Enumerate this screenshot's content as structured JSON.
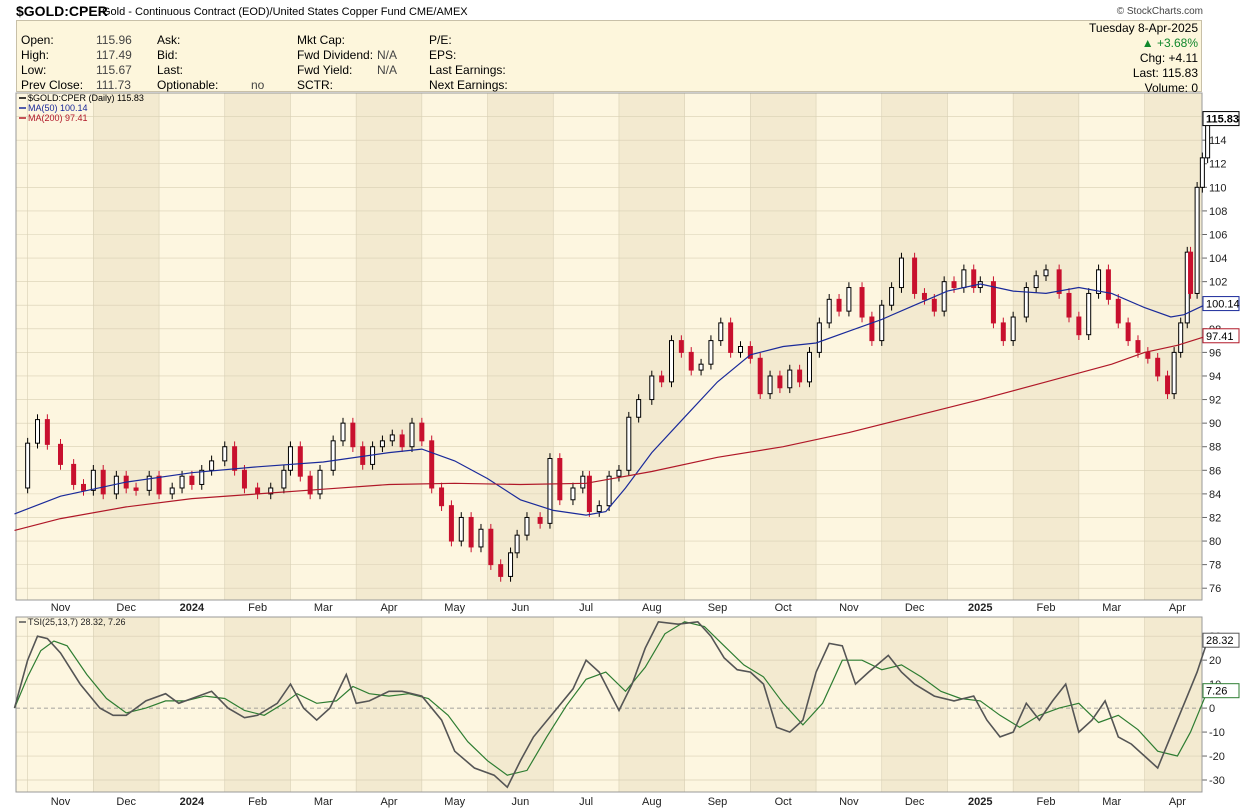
{
  "header": {
    "symbol": "$GOLD:CPER",
    "description": "Gold - Continuous Contract (EOD)/United States Copper Fund",
    "exchange": "CME/AMEX",
    "copyright": "© StockCharts.com"
  },
  "quote": {
    "col1": [
      {
        "label": "Open:",
        "value": "115.96"
      },
      {
        "label": "High:",
        "value": "117.49"
      },
      {
        "label": "Low:",
        "value": "115.67"
      },
      {
        "label": "Prev Close:",
        "value": "111.73"
      }
    ],
    "col2": [
      {
        "label": "Ask:",
        "value": ""
      },
      {
        "label": "Bid:",
        "value": ""
      },
      {
        "label": "Last:",
        "value": ""
      },
      {
        "label": "Optionable:",
        "value": "no"
      }
    ],
    "col3": [
      {
        "label": "Mkt Cap:",
        "value": ""
      },
      {
        "label": "Fwd Dividend:",
        "value": "N/A"
      },
      {
        "label": "Fwd Yield:",
        "value": "N/A"
      },
      {
        "label": "SCTR:",
        "value": ""
      }
    ],
    "col4": [
      {
        "label": "P/E:",
        "value": ""
      },
      {
        "label": "EPS:",
        "value": ""
      },
      {
        "label": "Last Earnings:",
        "value": ""
      },
      {
        "label": "Next Earnings:",
        "value": ""
      }
    ],
    "date": "Tuesday 8-Apr-2025",
    "change_pct": "+3.68%",
    "chg": "Chg: +4.11",
    "last": "Last: 115.83",
    "volume": "Volume:  0",
    "up_color": "#11882c"
  },
  "chart_data": [
    {
      "type": "candlestick",
      "legend": [
        {
          "label": "$GOLD:CPER (Daily) 115.83",
          "color": "#000000"
        },
        {
          "label": "MA(50) 100.14",
          "color": "#1a2a9a"
        },
        {
          "label": "MA(200) 97.41",
          "color": "#b01828"
        }
      ],
      "ylim": [
        75,
        118
      ],
      "y_ticks": [
        76,
        78,
        80,
        82,
        84,
        86,
        88,
        90,
        92,
        94,
        96,
        98,
        100,
        102,
        104,
        106,
        108,
        110,
        112,
        114,
        116
      ],
      "last_value_label": "115.83",
      "last_value": 115.83,
      "ma50_label": "100.14",
      "ma50_value": 100.14,
      "ma200_label": "97.41",
      "ma200_value": 97.41,
      "x_axis_labels": [
        "Nov",
        "Dec",
        "2024",
        "Feb",
        "Mar",
        "Apr",
        "May",
        "Jun",
        "Jul",
        "Aug",
        "Sep",
        "Oct",
        "Nov",
        "Dec",
        "2025",
        "Feb",
        "Mar",
        "Apr"
      ],
      "bold_labels": [
        "2024",
        "2025"
      ],
      "month_index": [
        0,
        1,
        2,
        3,
        4,
        5,
        6,
        7,
        8,
        9,
        10,
        11,
        12,
        13,
        14,
        15,
        16,
        17
      ],
      "close_path": [
        [
          -0.7,
          84.5
        ],
        [
          -0.5,
          88.3
        ],
        [
          -0.35,
          90.3
        ],
        [
          -0.2,
          88.2
        ],
        [
          0,
          86.5
        ],
        [
          0.2,
          84.8
        ],
        [
          0.35,
          84.3
        ],
        [
          0.5,
          86.0
        ],
        [
          0.65,
          84.0
        ],
        [
          0.85,
          85.5
        ],
        [
          1.0,
          84.5
        ],
        [
          1.15,
          84.3
        ],
        [
          1.35,
          85.5
        ],
        [
          1.5,
          84.0
        ],
        [
          1.7,
          84.5
        ],
        [
          1.85,
          85.5
        ],
        [
          2.0,
          84.8
        ],
        [
          2.15,
          86.0
        ],
        [
          2.3,
          86.8
        ],
        [
          2.5,
          88.0
        ],
        [
          2.65,
          86.0
        ],
        [
          2.8,
          84.5
        ],
        [
          3.0,
          84.0
        ],
        [
          3.2,
          84.5
        ],
        [
          3.4,
          86.0
        ],
        [
          3.5,
          88.0
        ],
        [
          3.65,
          85.5
        ],
        [
          3.8,
          84.0
        ],
        [
          3.95,
          86.0
        ],
        [
          4.15,
          88.5
        ],
        [
          4.3,
          90.0
        ],
        [
          4.45,
          88.0
        ],
        [
          4.6,
          86.5
        ],
        [
          4.75,
          88.0
        ],
        [
          4.9,
          88.5
        ],
        [
          5.05,
          89.0
        ],
        [
          5.2,
          88.0
        ],
        [
          5.35,
          90.0
        ],
        [
          5.5,
          88.5
        ],
        [
          5.65,
          84.5
        ],
        [
          5.8,
          83.0
        ],
        [
          5.95,
          80.0
        ],
        [
          6.1,
          82.0
        ],
        [
          6.25,
          79.5
        ],
        [
          6.4,
          81.0
        ],
        [
          6.55,
          78.0
        ],
        [
          6.7,
          77.0
        ],
        [
          6.85,
          79.0
        ],
        [
          6.95,
          80.5
        ],
        [
          7.1,
          82.0
        ],
        [
          7.3,
          81.5
        ],
        [
          7.45,
          87.0
        ],
        [
          7.6,
          83.5
        ],
        [
          7.8,
          84.5
        ],
        [
          7.95,
          85.5
        ],
        [
          8.05,
          82.5
        ],
        [
          8.2,
          83.0
        ],
        [
          8.35,
          85.5
        ],
        [
          8.5,
          86.0
        ],
        [
          8.65,
          90.5
        ],
        [
          8.8,
          92.0
        ],
        [
          9.0,
          94.0
        ],
        [
          9.15,
          93.5
        ],
        [
          9.3,
          97.0
        ],
        [
          9.45,
          96.0
        ],
        [
          9.6,
          94.5
        ],
        [
          9.75,
          95.0
        ],
        [
          9.9,
          97.0
        ],
        [
          10.05,
          98.5
        ],
        [
          10.2,
          96.0
        ],
        [
          10.35,
          96.5
        ],
        [
          10.5,
          95.5
        ],
        [
          10.65,
          92.5
        ],
        [
          10.8,
          94.0
        ],
        [
          10.95,
          93.0
        ],
        [
          11.1,
          94.5
        ],
        [
          11.25,
          93.5
        ],
        [
          11.4,
          96.0
        ],
        [
          11.55,
          98.5
        ],
        [
          11.7,
          100.5
        ],
        [
          11.85,
          99.5
        ],
        [
          12.0,
          101.5
        ],
        [
          12.2,
          99.0
        ],
        [
          12.35,
          97.0
        ],
        [
          12.5,
          100.0
        ],
        [
          12.65,
          101.5
        ],
        [
          12.8,
          104.0
        ],
        [
          13.0,
          101.0
        ],
        [
          13.15,
          100.5
        ],
        [
          13.3,
          99.5
        ],
        [
          13.45,
          102.0
        ],
        [
          13.6,
          101.5
        ],
        [
          13.75,
          103.0
        ],
        [
          13.9,
          101.5
        ],
        [
          14.0,
          102.0
        ],
        [
          14.2,
          98.5
        ],
        [
          14.35,
          97.0
        ],
        [
          14.5,
          99.0
        ],
        [
          14.7,
          101.5
        ],
        [
          14.85,
          102.5
        ],
        [
          15.0,
          103.0
        ],
        [
          15.2,
          101.0
        ],
        [
          15.35,
          99.0
        ],
        [
          15.5,
          97.5
        ],
        [
          15.65,
          101.0
        ],
        [
          15.8,
          103.0
        ],
        [
          15.95,
          100.5
        ],
        [
          16.1,
          98.5
        ],
        [
          16.25,
          97.0
        ],
        [
          16.4,
          96.0
        ],
        [
          16.55,
          95.5
        ],
        [
          16.7,
          94.0
        ],
        [
          16.85,
          92.5
        ],
        [
          16.95,
          96.0
        ],
        [
          17.05,
          98.5
        ],
        [
          17.15,
          104.5
        ],
        [
          17.2,
          101.0
        ],
        [
          17.3,
          110.0
        ],
        [
          17.38,
          112.5
        ],
        [
          17.46,
          115.83
        ]
      ],
      "ma50_path": [
        [
          -0.7,
          82.3
        ],
        [
          0,
          83.8
        ],
        [
          1,
          85.0
        ],
        [
          2,
          85.8
        ],
        [
          3,
          86.3
        ],
        [
          4,
          86.7
        ],
        [
          5,
          87.5
        ],
        [
          5.5,
          87.8
        ],
        [
          6,
          86.8
        ],
        [
          6.5,
          85.3
        ],
        [
          7,
          83.5
        ],
        [
          7.5,
          82.6
        ],
        [
          8,
          82.2
        ],
        [
          8.3,
          82.5
        ],
        [
          8.6,
          84.5
        ],
        [
          9,
          87.5
        ],
        [
          9.5,
          90.5
        ],
        [
          10,
          93.5
        ],
        [
          10.5,
          95.8
        ],
        [
          11,
          96.5
        ],
        [
          11.5,
          96.8
        ],
        [
          12,
          97.8
        ],
        [
          12.5,
          98.8
        ],
        [
          13,
          100.0
        ],
        [
          13.5,
          101.2
        ],
        [
          14,
          101.8
        ],
        [
          14.5,
          101.2
        ],
        [
          15,
          101.0
        ],
        [
          15.5,
          101.5
        ],
        [
          16,
          101.0
        ],
        [
          16.5,
          99.8
        ],
        [
          16.9,
          99.0
        ],
        [
          17.1,
          99.2
        ],
        [
          17.46,
          100.14
        ]
      ],
      "ma200_path": [
        [
          -0.7,
          80.9
        ],
        [
          0,
          81.9
        ],
        [
          1,
          82.9
        ],
        [
          2,
          83.6
        ],
        [
          3,
          84.0
        ],
        [
          4,
          84.4
        ],
        [
          5,
          84.8
        ],
        [
          6,
          84.9
        ],
        [
          7,
          84.8
        ],
        [
          8,
          84.9
        ],
        [
          9,
          85.9
        ],
        [
          10,
          87.1
        ],
        [
          11,
          88.0
        ],
        [
          12,
          89.2
        ],
        [
          13,
          90.6
        ],
        [
          14,
          92.0
        ],
        [
          15,
          93.5
        ],
        [
          16,
          95.0
        ],
        [
          16.5,
          96.0
        ],
        [
          17,
          96.6
        ],
        [
          17.46,
          97.41
        ]
      ]
    },
    {
      "type": "line",
      "legend": [
        {
          "label": "TSI(25,13,7) 28.32, 7.26",
          "color": "#222222"
        }
      ],
      "ylim": [
        -35,
        38
      ],
      "y_ticks": [
        -30,
        -20,
        -10,
        0,
        10,
        20,
        30
      ],
      "tsi_value": 28.32,
      "tsi_label": "28.32",
      "signal_value": 7.26,
      "signal_label": "7.26",
      "tsi_path": [
        [
          -0.7,
          0
        ],
        [
          -0.5,
          20
        ],
        [
          -0.35,
          30
        ],
        [
          -0.2,
          29
        ],
        [
          0,
          23
        ],
        [
          0.3,
          10
        ],
        [
          0.6,
          0
        ],
        [
          0.8,
          -3
        ],
        [
          1.0,
          -3
        ],
        [
          1.3,
          3
        ],
        [
          1.6,
          6
        ],
        [
          1.8,
          2
        ],
        [
          2.0,
          4
        ],
        [
          2.3,
          7
        ],
        [
          2.55,
          0
        ],
        [
          2.8,
          -4
        ],
        [
          3.0,
          -3
        ],
        [
          3.3,
          2
        ],
        [
          3.5,
          10
        ],
        [
          3.7,
          0
        ],
        [
          3.9,
          -5
        ],
        [
          4.1,
          0
        ],
        [
          4.35,
          14
        ],
        [
          4.5,
          2
        ],
        [
          4.7,
          3
        ],
        [
          5.0,
          7
        ],
        [
          5.2,
          7
        ],
        [
          5.5,
          5
        ],
        [
          5.8,
          -5
        ],
        [
          6.0,
          -18
        ],
        [
          6.3,
          -25
        ],
        [
          6.6,
          -28
        ],
        [
          6.8,
          -33
        ],
        [
          7.0,
          -22
        ],
        [
          7.2,
          -12
        ],
        [
          7.5,
          -2
        ],
        [
          7.8,
          8
        ],
        [
          8.0,
          20
        ],
        [
          8.2,
          15
        ],
        [
          8.5,
          -1
        ],
        [
          8.7,
          10
        ],
        [
          8.9,
          25
        ],
        [
          9.1,
          36
        ],
        [
          9.4,
          35
        ],
        [
          9.7,
          36
        ],
        [
          9.9,
          30
        ],
        [
          10.1,
          21
        ],
        [
          10.3,
          16
        ],
        [
          10.5,
          15
        ],
        [
          10.7,
          10
        ],
        [
          10.9,
          -8
        ],
        [
          11.1,
          -10
        ],
        [
          11.3,
          -5
        ],
        [
          11.5,
          15
        ],
        [
          11.7,
          27
        ],
        [
          11.9,
          26
        ],
        [
          12.1,
          10
        ],
        [
          12.3,
          15
        ],
        [
          12.6,
          22
        ],
        [
          12.8,
          15
        ],
        [
          13.0,
          10
        ],
        [
          13.3,
          5
        ],
        [
          13.6,
          3
        ],
        [
          13.9,
          5
        ],
        [
          14.1,
          -5
        ],
        [
          14.3,
          -12
        ],
        [
          14.5,
          -10
        ],
        [
          14.7,
          2
        ],
        [
          14.9,
          -5
        ],
        [
          15.1,
          3
        ],
        [
          15.3,
          10
        ],
        [
          15.5,
          -10
        ],
        [
          15.7,
          -5
        ],
        [
          15.9,
          3
        ],
        [
          16.1,
          -12
        ],
        [
          16.3,
          -15
        ],
        [
          16.5,
          -20
        ],
        [
          16.7,
          -25
        ],
        [
          16.85,
          -15
        ],
        [
          17.0,
          -5
        ],
        [
          17.15,
          5
        ],
        [
          17.3,
          15
        ],
        [
          17.46,
          28.32
        ]
      ],
      "signal_path": [
        [
          -0.7,
          0
        ],
        [
          -0.5,
          13
        ],
        [
          -0.3,
          24
        ],
        [
          -0.1,
          28
        ],
        [
          0.1,
          26
        ],
        [
          0.4,
          14
        ],
        [
          0.7,
          4
        ],
        [
          1.0,
          -2
        ],
        [
          1.3,
          0
        ],
        [
          1.6,
          3
        ],
        [
          1.9,
          3
        ],
        [
          2.2,
          5
        ],
        [
          2.5,
          4
        ],
        [
          2.8,
          -1
        ],
        [
          3.1,
          -3
        ],
        [
          3.4,
          2
        ],
        [
          3.6,
          6
        ],
        [
          3.9,
          2
        ],
        [
          4.2,
          3
        ],
        [
          4.45,
          9
        ],
        [
          4.7,
          6
        ],
        [
          5.0,
          5
        ],
        [
          5.3,
          6
        ],
        [
          5.6,
          4
        ],
        [
          5.9,
          -3
        ],
        [
          6.2,
          -14
        ],
        [
          6.5,
          -22
        ],
        [
          6.8,
          -28
        ],
        [
          7.1,
          -26
        ],
        [
          7.4,
          -12
        ],
        [
          7.7,
          1
        ],
        [
          8.0,
          12
        ],
        [
          8.3,
          15
        ],
        [
          8.6,
          7
        ],
        [
          8.9,
          17
        ],
        [
          9.2,
          31
        ],
        [
          9.5,
          36
        ],
        [
          9.8,
          34
        ],
        [
          10.1,
          26
        ],
        [
          10.4,
          18
        ],
        [
          10.7,
          13
        ],
        [
          11.0,
          2
        ],
        [
          11.3,
          -7
        ],
        [
          11.6,
          2
        ],
        [
          11.9,
          20
        ],
        [
          12.2,
          20
        ],
        [
          12.5,
          16
        ],
        [
          12.8,
          18
        ],
        [
          13.1,
          13
        ],
        [
          13.4,
          7
        ],
        [
          13.7,
          4
        ],
        [
          14.0,
          3
        ],
        [
          14.3,
          -3
        ],
        [
          14.6,
          -8
        ],
        [
          14.9,
          -3
        ],
        [
          15.2,
          0
        ],
        [
          15.5,
          2
        ],
        [
          15.8,
          -6
        ],
        [
          16.1,
          -3
        ],
        [
          16.4,
          -9
        ],
        [
          16.7,
          -18
        ],
        [
          17.0,
          -20
        ],
        [
          17.2,
          -10
        ],
        [
          17.46,
          7.26
        ]
      ]
    }
  ]
}
